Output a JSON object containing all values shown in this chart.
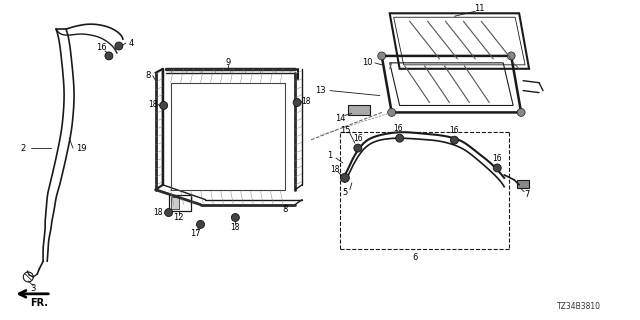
{
  "part_number": "TZ34B3810",
  "bg_color": "#ffffff",
  "line_color": "#1a1a1a",
  "fig_width": 6.4,
  "fig_height": 3.2,
  "dpi": 100
}
